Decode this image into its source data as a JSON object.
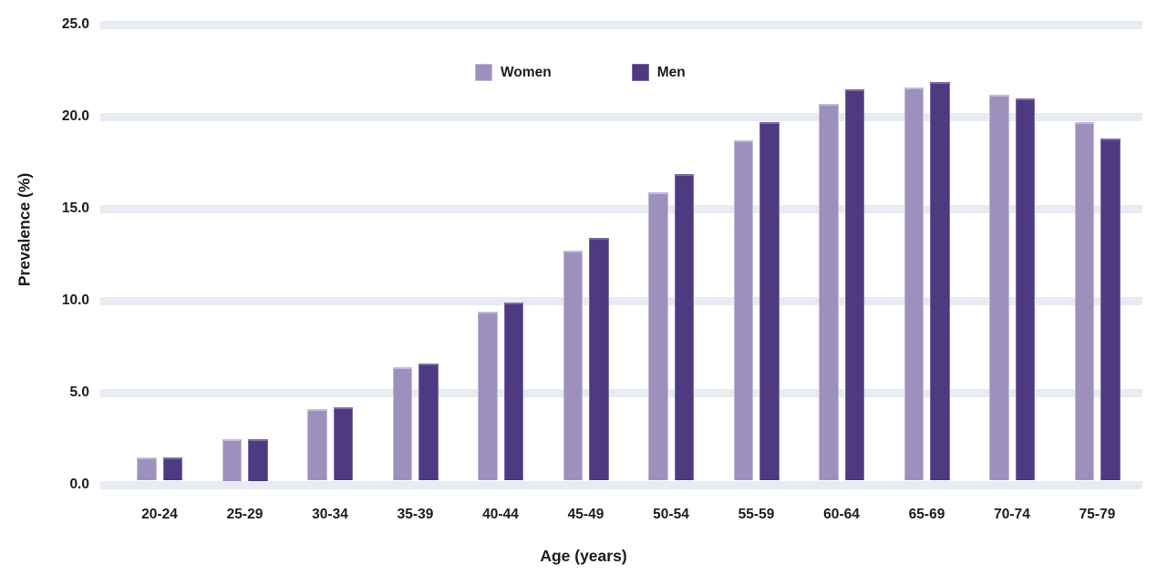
{
  "chart_data": {
    "type": "bar",
    "title": "",
    "xlabel": "Age (years)",
    "ylabel": "Prevalence (%)",
    "categories": [
      "20-24",
      "25-29",
      "30-34",
      "35-39",
      "40-44",
      "45-49",
      "50-54",
      "55-59",
      "60-64",
      "65-69",
      "70-74",
      "75-79"
    ],
    "series": [
      {
        "name": "Women",
        "color": "#9e90bd",
        "edge_color": "#c4bad9",
        "values": [
          1.5,
          2.5,
          4.1,
          6.4,
          9.4,
          12.7,
          15.9,
          18.7,
          20.7,
          21.6,
          21.2,
          19.7
        ]
      },
      {
        "name": "Men",
        "color": "#4e3a80",
        "edge_color": "#7e6da5",
        "values": [
          1.5,
          2.5,
          4.2,
          6.6,
          9.9,
          13.4,
          16.9,
          19.7,
          21.5,
          21.9,
          21.0,
          18.8
        ]
      }
    ],
    "ylim": [
      0,
      25
    ],
    "ytick_values": [
      0,
      5,
      10,
      15,
      20,
      25
    ],
    "ytick_labels": [
      "0.0",
      "5.0",
      "10.0",
      "15.0",
      "20.0",
      "25.0"
    ],
    "grid": true,
    "legend_position": "top-center",
    "colors": {
      "gridline": "#e7ebf2",
      "text": "#1c1c1c",
      "background": "#ffffff"
    }
  }
}
